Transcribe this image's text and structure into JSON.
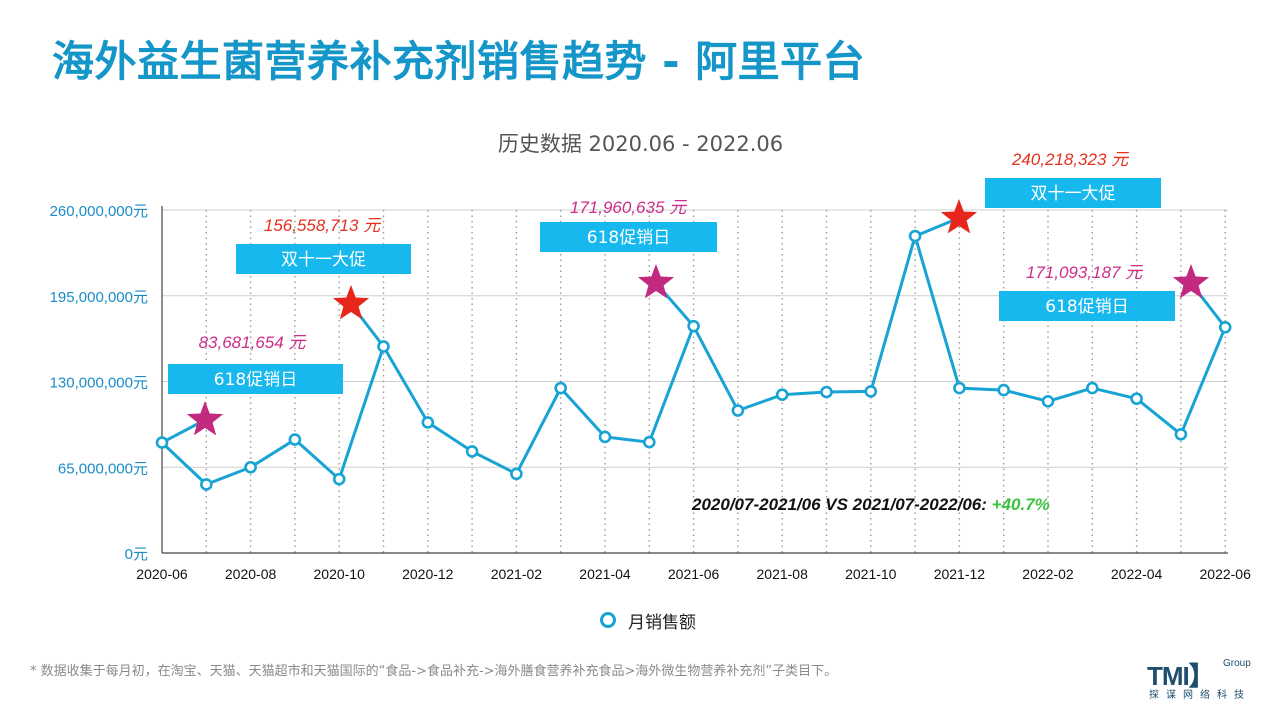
{
  "page": {
    "title": "海外益生菌营养补充剂销售趋势 - 阿里平台",
    "subtitle": "历史数据 2020.06 - 2022.06",
    "legend_label": "月销售额",
    "footnote": "* 数据收集于每月初，在淘宝、天猫、天猫超市和天猫国际的“食品->食品补充->海外膳食营养补充食品>海外微生物营养补充剂”子类目下。",
    "logo_main": "TMI】",
    "logo_group": "Group",
    "logo_sub": "探谋网络科技"
  },
  "colors": {
    "title": "#1596c9",
    "line": "#17a3d4",
    "callout_box": "#16b8ee",
    "red_star": "#e8261c",
    "magenta_star": "#c22a7f",
    "red_text": "#e3321f",
    "magenta_text": "#cc2e8a",
    "growth": "#3ec13e",
    "axis_label": "#1a8cc8"
  },
  "chart_data": {
    "type": "line",
    "title": "历史数据 2020.06 - 2022.06",
    "xlabel": "",
    "ylabel": "",
    "ylim": [
      0,
      260000000
    ],
    "y_ticks": [
      0,
      65000000,
      130000000,
      195000000,
      260000000
    ],
    "y_tick_labels": [
      "0元",
      "65,000,000元",
      "130,000,000元",
      "195,000,000元",
      "260,000,000元"
    ],
    "x_tick_labels": [
      "2020-06",
      "2020-08",
      "2020-10",
      "2020-12",
      "2021-02",
      "2021-04",
      "2021-06",
      "2021-08",
      "2021-10",
      "2021-12",
      "2022-02",
      "2022-04",
      "2022-06"
    ],
    "grid": "vertical dotted and horizontal solid",
    "legend_position": "bottom",
    "x": [
      "2020-06",
      "2020-07",
      "2020-08",
      "2020-09",
      "2020-10",
      "2020-11",
      "2020-12",
      "2021-01",
      "2021-02",
      "2021-03",
      "2021-04",
      "2021-05",
      "2021-06",
      "2021-07",
      "2021-08",
      "2021-09",
      "2021-10",
      "2021-11",
      "2021-12",
      "2022-01",
      "2022-02",
      "2022-03",
      "2022-04",
      "2022-05",
      "2022-06"
    ],
    "series": [
      {
        "name": "月销售额",
        "values": [
          83681654,
          52000000,
          65000000,
          86000000,
          56000000,
          156558713,
          99000000,
          77000000,
          60000000,
          125000000,
          88000000,
          84000000,
          171960635,
          108000000,
          120000000,
          122000000,
          122500000,
          240218323,
          125000000,
          123500000,
          115000000,
          125000000,
          117000000,
          90000000,
          171093187
        ]
      }
    ],
    "annotations": [
      {
        "kind": "value",
        "text": "83,681,654 元",
        "style": "magenta"
      },
      {
        "kind": "value",
        "text": "156,558,713 元",
        "style": "red"
      },
      {
        "kind": "value",
        "text": "171,960,635 元",
        "style": "magenta"
      },
      {
        "kind": "value",
        "text": "240,218,323 元",
        "style": "red"
      },
      {
        "kind": "value",
        "text": "171,093,187 元",
        "style": "magenta"
      },
      {
        "kind": "callout",
        "text": "618促销日"
      },
      {
        "kind": "callout",
        "text": "双十一大促"
      },
      {
        "kind": "callout",
        "text": "618促销日"
      },
      {
        "kind": "callout",
        "text": "双十一大促"
      },
      {
        "kind": "callout",
        "text": "618促销日"
      }
    ],
    "comparison": {
      "label": "2020/07-2021/06 VS 2021/07-2022/06:",
      "value": "+40.7%"
    }
  }
}
